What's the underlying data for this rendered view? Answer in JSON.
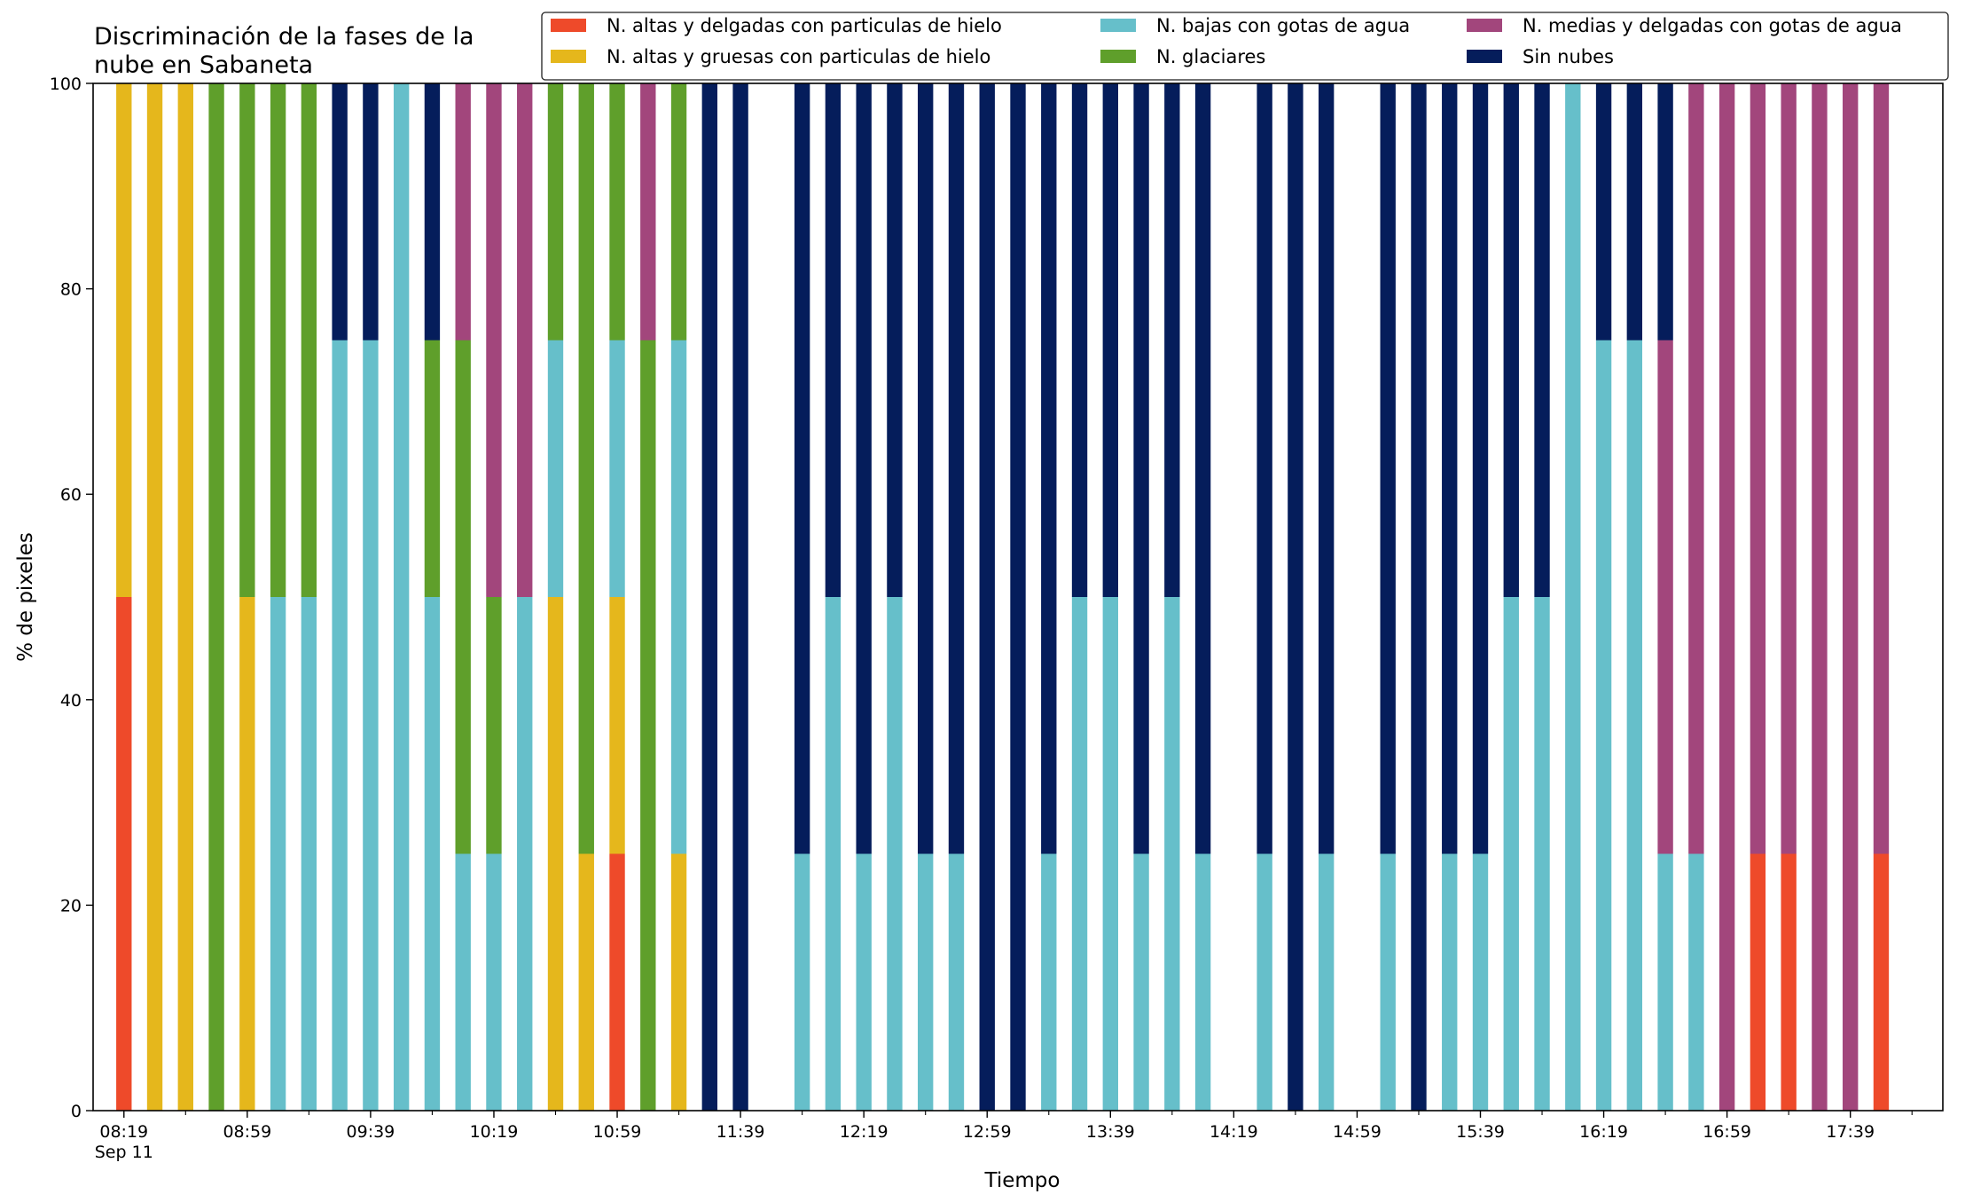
{
  "chart_data": {
    "type": "bar",
    "stacked": true,
    "title": "Discriminación de la fases de la\nnube en Sabaneta",
    "xlabel": "Tiempo",
    "ylabel": "% de pixeles",
    "ylim": [
      0,
      100
    ],
    "yticks": [
      0,
      20,
      40,
      60,
      80,
      100
    ],
    "xlim": [
      "08:09",
      "18:09"
    ],
    "date_label": "Sep 11",
    "xticks_major": [
      "08:19",
      "08:59",
      "09:39",
      "10:19",
      "10:59",
      "11:39",
      "12:19",
      "12:59",
      "13:39",
      "14:19",
      "14:59",
      "15:39",
      "16:19",
      "16:59",
      "17:39"
    ],
    "xticks_minor": [
      "08:39",
      "09:19",
      "09:59",
      "10:39",
      "11:19",
      "11:59",
      "12:39",
      "13:19",
      "13:59",
      "14:39",
      "15:19",
      "15:59",
      "16:39",
      "17:19",
      "17:59"
    ],
    "legend_location": "top-right",
    "grid": false,
    "series_order": [
      "ice_thin",
      "ice_thick",
      "low_water",
      "glacier",
      "mid_water",
      "clear"
    ],
    "series": [
      {
        "key": "ice_thin",
        "name": "N. altas y delgadas con particulas de hielo",
        "color": "#ee4a2a"
      },
      {
        "key": "ice_thick",
        "name": "N. altas y gruesas con particulas de hielo",
        "color": "#e5b71c"
      },
      {
        "key": "low_water",
        "name": "N. bajas con gotas de agua",
        "color": "#66bfca"
      },
      {
        "key": "glacier",
        "name": "N. glaciares",
        "color": "#5f9f2b"
      },
      {
        "key": "mid_water",
        "name": "N. medias y delgadas con gotas de agua",
        "color": "#a2467c"
      },
      {
        "key": "clear",
        "name": "Sin nubes",
        "color": "#051d5b"
      }
    ],
    "bars": [
      {
        "x": "08:19",
        "ice_thin": 50,
        "ice_thick": 50
      },
      {
        "x": "08:29",
        "ice_thick": 100
      },
      {
        "x": "08:39",
        "ice_thick": 100
      },
      {
        "x": "08:49",
        "glacier": 100
      },
      {
        "x": "08:59",
        "ice_thick": 50,
        "glacier": 50
      },
      {
        "x": "09:09",
        "low_water": 50,
        "glacier": 50
      },
      {
        "x": "09:19",
        "low_water": 50,
        "glacier": 50
      },
      {
        "x": "09:29",
        "low_water": 75,
        "clear": 25
      },
      {
        "x": "09:39",
        "low_water": 75,
        "clear": 25
      },
      {
        "x": "09:49",
        "low_water": 100
      },
      {
        "x": "09:59",
        "low_water": 50,
        "glacier": 25,
        "clear": 25
      },
      {
        "x": "10:09",
        "glacier": 50,
        "low_water": 25,
        "mid_water": 25
      },
      {
        "x": "10:19",
        "low_water": 25,
        "glacier": 25,
        "mid_water": 50
      },
      {
        "x": "10:29",
        "low_water": 50,
        "mid_water": 50
      },
      {
        "x": "10:39",
        "ice_thick": 50,
        "low_water": 25,
        "glacier": 25
      },
      {
        "x": "10:49",
        "ice_thick": 25,
        "glacier": 75
      },
      {
        "x": "10:59",
        "ice_thin": 25,
        "ice_thick": 25,
        "low_water": 25,
        "glacier": 25
      },
      {
        "x": "11:09",
        "glacier": 75,
        "mid_water": 25
      },
      {
        "x": "11:19",
        "ice_thick": 25,
        "low_water": 50,
        "glacier": 25
      },
      {
        "x": "11:29",
        "clear": 100
      },
      {
        "x": "11:39",
        "clear": 100
      },
      {
        "x": "11:59",
        "low_water": 25,
        "clear": 75
      },
      {
        "x": "12:09",
        "low_water": 50,
        "clear": 50
      },
      {
        "x": "12:19",
        "low_water": 25,
        "clear": 75
      },
      {
        "x": "12:29",
        "low_water": 50,
        "clear": 50
      },
      {
        "x": "12:39",
        "low_water": 25,
        "clear": 75
      },
      {
        "x": "12:49",
        "low_water": 25,
        "clear": 75
      },
      {
        "x": "12:59",
        "clear": 100
      },
      {
        "x": "13:09",
        "clear": 100
      },
      {
        "x": "13:19",
        "low_water": 25,
        "clear": 75
      },
      {
        "x": "13:29",
        "low_water": 50,
        "clear": 50
      },
      {
        "x": "13:39",
        "low_water": 50,
        "clear": 50
      },
      {
        "x": "13:49",
        "low_water": 25,
        "clear": 75
      },
      {
        "x": "13:59",
        "low_water": 50,
        "clear": 50
      },
      {
        "x": "14:09",
        "low_water": 25,
        "clear": 75
      },
      {
        "x": "14:29",
        "low_water": 25,
        "clear": 75
      },
      {
        "x": "14:39",
        "clear": 100
      },
      {
        "x": "14:49",
        "low_water": 25,
        "clear": 75
      },
      {
        "x": "15:09",
        "low_water": 25,
        "clear": 75
      },
      {
        "x": "15:19",
        "clear": 100
      },
      {
        "x": "15:29",
        "low_water": 25,
        "clear": 75
      },
      {
        "x": "15:39",
        "low_water": 25,
        "clear": 75
      },
      {
        "x": "15:49",
        "low_water": 50,
        "clear": 50
      },
      {
        "x": "15:59",
        "low_water": 50,
        "clear": 50
      },
      {
        "x": "16:09",
        "low_water": 100
      },
      {
        "x": "16:19",
        "low_water": 75,
        "clear": 25
      },
      {
        "x": "16:29",
        "low_water": 75,
        "clear": 25
      },
      {
        "x": "16:39",
        "low_water": 25,
        "mid_water": 50,
        "clear": 25
      },
      {
        "x": "16:49",
        "low_water": 25,
        "mid_water": 75
      },
      {
        "x": "16:59",
        "mid_water": 100
      },
      {
        "x": "17:09",
        "ice_thin": 25,
        "mid_water": 75
      },
      {
        "x": "17:19",
        "ice_thin": 25,
        "mid_water": 75
      },
      {
        "x": "17:29",
        "mid_water": 100
      },
      {
        "x": "17:39",
        "mid_water": 100
      },
      {
        "x": "17:49",
        "ice_thin": 25,
        "mid_water": 75
      }
    ]
  }
}
